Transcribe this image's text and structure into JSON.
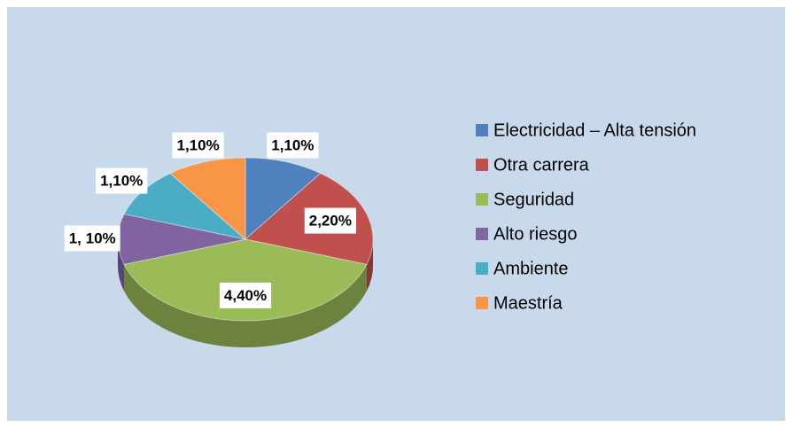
{
  "chart_data": {
    "type": "pie",
    "categories": [
      "Electricidad – Alta tensión",
      "Otra carrera",
      "Seguridad",
      "Alto riesgo",
      "Ambiente",
      "Maestría"
    ],
    "values": [
      1.1,
      2.2,
      4.4,
      1.1,
      1.1,
      1.1
    ],
    "value_labels": [
      "1,10%",
      "2,20%",
      "4,40%",
      "1, 10%",
      "1,10%",
      "1,10%"
    ],
    "colors": [
      "#4f81bd",
      "#c0504d",
      "#9bbb59",
      "#8064a2",
      "#4bacc6",
      "#f79646"
    ],
    "legend": "right"
  }
}
